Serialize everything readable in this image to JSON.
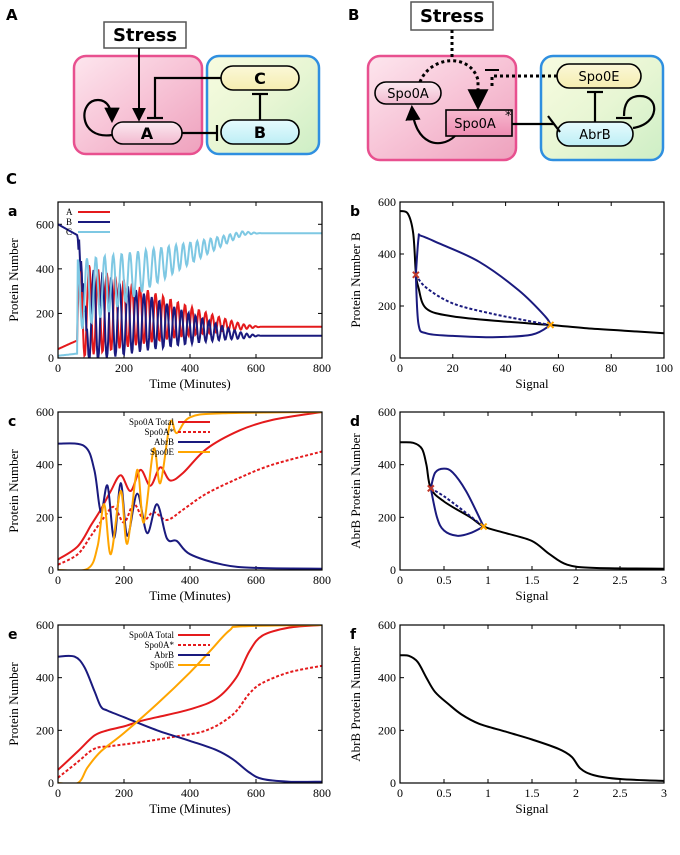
{
  "panel_labels": {
    "A": "A",
    "B": "B",
    "C": "C"
  },
  "diagram_a": {
    "stress": "Stress",
    "node_a": "A",
    "node_b": "B",
    "node_c": "C"
  },
  "diagram_b": {
    "stress": "Stress",
    "spo0a": "Spo0A",
    "spo0a_star": "Spo0A",
    "star": "*",
    "spo0e": "Spo0E",
    "abrb": "AbrB"
  },
  "colors": {
    "red": "#e41a1c",
    "navy": "#1a1a7e",
    "light_blue": "#7ec8e3",
    "orange": "#ffa500",
    "black": "#000000",
    "pink": "#f4a6c0",
    "green": "#c8ecc0"
  },
  "chart_data": [
    {
      "id": "a",
      "letter": "a",
      "type": "line",
      "xlabel": "Time (Minutes)",
      "ylabel": "Protein Number",
      "xlim": [
        0,
        800
      ],
      "ylim": [
        0,
        700
      ],
      "xticks": [
        "0",
        "200",
        "400",
        "600",
        "800"
      ],
      "yticks": [
        "0",
        "200",
        "400",
        "600"
      ],
      "legend": [
        "A",
        "B",
        "C"
      ],
      "series": [
        {
          "name": "A",
          "style": "oscillating",
          "osc_center": [
            220,
            140
          ],
          "osc_amp": [
            220,
            0
          ]
        },
        {
          "name": "B",
          "style": "oscillating",
          "osc_center": [
            200,
            100
          ],
          "osc_amp": [
            230,
            0
          ]
        },
        {
          "name": "C",
          "style": "oscillating",
          "osc_center": [
            280,
            560
          ],
          "osc_amp": [
            180,
            0
          ]
        }
      ]
    },
    {
      "id": "b",
      "letter": "b",
      "type": "line",
      "xlabel": "Signal",
      "ylabel": "Protein Number B",
      "xlim": [
        0,
        100
      ],
      "ylim": [
        0,
        600
      ],
      "xticks": [
        "0",
        "20",
        "40",
        "60",
        "80",
        "100"
      ],
      "yticks": [
        "0",
        "200",
        "400",
        "600"
      ],
      "series": [
        {
          "name": "stable_low",
          "points": [
            [
              0,
              565
            ],
            [
              3,
              555
            ],
            [
              5,
              480
            ],
            [
              6,
              330
            ],
            [
              7,
              270
            ],
            [
              10,
              190
            ],
            [
              20,
              160
            ],
            [
              40,
              140
            ],
            [
              57,
              127
            ],
            [
              70,
              115
            ],
            [
              85,
              105
            ],
            [
              100,
              95
            ]
          ]
        },
        {
          "name": "oscillation_max",
          "points": [
            [
              6,
              320
            ],
            [
              7,
              460
            ],
            [
              8,
              470
            ],
            [
              15,
              440
            ],
            [
              30,
              370
            ],
            [
              45,
              260
            ],
            [
              55,
              160
            ],
            [
              57,
              127
            ]
          ]
        },
        {
          "name": "oscillation_min",
          "points": [
            [
              6,
              320
            ],
            [
              7,
              130
            ],
            [
              10,
              95
            ],
            [
              20,
              85
            ],
            [
              35,
              80
            ],
            [
              50,
              90
            ],
            [
              57,
              127
            ]
          ]
        },
        {
          "name": "unstable",
          "dashed": true,
          "points": [
            [
              6,
              320
            ],
            [
              10,
              270
            ],
            [
              20,
              210
            ],
            [
              35,
              170
            ],
            [
              50,
              140
            ],
            [
              57,
              127
            ]
          ]
        }
      ],
      "markers": [
        {
          "x": 6,
          "y": 320,
          "color": "#c0392b"
        },
        {
          "x": 57,
          "y": 127,
          "color": "#ffa500"
        }
      ]
    },
    {
      "id": "c",
      "letter": "c",
      "type": "line",
      "xlabel": "Time (Minutes)",
      "ylabel": "Protein Number",
      "xlim": [
        0,
        800
      ],
      "ylim": [
        0,
        600
      ],
      "xticks": [
        "0",
        "200",
        "400",
        "600",
        "800"
      ],
      "yticks": [
        "0",
        "200",
        "400",
        "600"
      ],
      "legend": [
        "Spo0A Total",
        "Spo0A*",
        "AbrB",
        "Spo0E"
      ],
      "series": [
        {
          "name": "Spo0A Total",
          "points": [
            [
              0,
              40
            ],
            [
              60,
              90
            ],
            [
              100,
              170
            ],
            [
              130,
              230
            ],
            [
              160,
              300
            ],
            [
              190,
              360
            ],
            [
              220,
              300
            ],
            [
              250,
              380
            ],
            [
              280,
              320
            ],
            [
              310,
              390
            ],
            [
              340,
              340
            ],
            [
              380,
              370
            ],
            [
              450,
              460
            ],
            [
              550,
              530
            ],
            [
              650,
              570
            ],
            [
              800,
              600
            ]
          ]
        },
        {
          "name": "Spo0A*",
          "dashed": true,
          "points": [
            [
              0,
              20
            ],
            [
              60,
              60
            ],
            [
              100,
              130
            ],
            [
              140,
              200
            ],
            [
              170,
              240
            ],
            [
              200,
              180
            ],
            [
              230,
              250
            ],
            [
              260,
              190
            ],
            [
              290,
              220
            ],
            [
              330,
              190
            ],
            [
              380,
              230
            ],
            [
              450,
              290
            ],
            [
              550,
              350
            ],
            [
              650,
              400
            ],
            [
              800,
              450
            ]
          ]
        },
        {
          "name": "AbrB",
          "points": [
            [
              0,
              480
            ],
            [
              80,
              470
            ],
            [
              110,
              380
            ],
            [
              130,
              220
            ],
            [
              150,
              320
            ],
            [
              170,
              120
            ],
            [
              190,
              330
            ],
            [
              210,
              130
            ],
            [
              240,
              290
            ],
            [
              270,
              140
            ],
            [
              300,
              250
            ],
            [
              330,
              120
            ],
            [
              360,
              110
            ],
            [
              400,
              60
            ],
            [
              500,
              20
            ],
            [
              600,
              8
            ],
            [
              800,
              5
            ]
          ]
        },
        {
          "name": "Spo0E",
          "points": [
            [
              0,
              0
            ],
            [
              90,
              5
            ],
            [
              120,
              90
            ],
            [
              140,
              250
            ],
            [
              160,
              60
            ],
            [
              190,
              300
            ],
            [
              210,
              100
            ],
            [
              240,
              380
            ],
            [
              260,
              180
            ],
            [
              290,
              460
            ],
            [
              310,
              330
            ],
            [
              340,
              560
            ],
            [
              360,
              520
            ],
            [
              400,
              580
            ],
            [
              500,
              595
            ],
            [
              800,
              600
            ]
          ]
        }
      ]
    },
    {
      "id": "d",
      "letter": "d",
      "type": "line",
      "xlabel": "Signal",
      "ylabel": "AbrB Protein Number",
      "xlim": [
        0,
        3
      ],
      "ylim": [
        0,
        600
      ],
      "xticks": [
        "0",
        "0.5",
        "1",
        "1.5",
        "2",
        "2.5",
        "3"
      ],
      "yticks": [
        "0",
        "200",
        "400",
        "600"
      ],
      "series": [
        {
          "name": "stable",
          "points": [
            [
              0,
              485
            ],
            [
              0.15,
              483
            ],
            [
              0.25,
              460
            ],
            [
              0.3,
              400
            ],
            [
              0.35,
              310
            ],
            [
              0.5,
              260
            ],
            [
              0.8,
              200
            ],
            [
              0.95,
              165
            ],
            [
              1.2,
              140
            ],
            [
              1.5,
              110
            ],
            [
              1.7,
              60
            ],
            [
              1.9,
              20
            ],
            [
              2.2,
              8
            ],
            [
              3,
              5
            ]
          ]
        },
        {
          "name": "oscillation_max",
          "points": [
            [
              0.35,
              310
            ],
            [
              0.4,
              370
            ],
            [
              0.5,
              385
            ],
            [
              0.6,
              370
            ],
            [
              0.75,
              300
            ],
            [
              0.9,
              200
            ],
            [
              0.95,
              165
            ]
          ]
        },
        {
          "name": "oscillation_min",
          "points": [
            [
              0.35,
              310
            ],
            [
              0.42,
              200
            ],
            [
              0.5,
              150
            ],
            [
              0.65,
              130
            ],
            [
              0.8,
              140
            ],
            [
              0.95,
              165
            ]
          ]
        },
        {
          "name": "unstable",
          "dashed": true,
          "points": [
            [
              0.35,
              310
            ],
            [
              0.5,
              280
            ],
            [
              0.7,
              230
            ],
            [
              0.95,
              165
            ]
          ]
        }
      ],
      "markers": [
        {
          "x": 0.35,
          "y": 310,
          "color": "#c0392b"
        },
        {
          "x": 0.95,
          "y": 165,
          "color": "#ffa500"
        }
      ]
    },
    {
      "id": "e",
      "letter": "e",
      "type": "line",
      "xlabel": "Time (Minutes)",
      "ylabel": "Protein Number",
      "xlim": [
        0,
        800
      ],
      "ylim": [
        0,
        600
      ],
      "xticks": [
        "0",
        "200",
        "400",
        "600",
        "800"
      ],
      "yticks": [
        "0",
        "200",
        "400",
        "600"
      ],
      "legend": [
        "Spo0A Total",
        "Spo0A*",
        "AbrB",
        "Spo0E"
      ],
      "series": [
        {
          "name": "Spo0A Total",
          "points": [
            [
              0,
              50
            ],
            [
              60,
              120
            ],
            [
              110,
              180
            ],
            [
              150,
              200
            ],
            [
              200,
              215
            ],
            [
              250,
              235
            ],
            [
              300,
              250
            ],
            [
              400,
              280
            ],
            [
              480,
              320
            ],
            [
              540,
              400
            ],
            [
              580,
              500
            ],
            [
              620,
              560
            ],
            [
              700,
              590
            ],
            [
              800,
              600
            ]
          ]
        },
        {
          "name": "Spo0A*",
          "dashed": true,
          "points": [
            [
              0,
              20
            ],
            [
              60,
              80
            ],
            [
              110,
              130
            ],
            [
              160,
              140
            ],
            [
              250,
              155
            ],
            [
              350,
              175
            ],
            [
              450,
              200
            ],
            [
              530,
              260
            ],
            [
              580,
              340
            ],
            [
              620,
              380
            ],
            [
              700,
              420
            ],
            [
              800,
              445
            ]
          ]
        },
        {
          "name": "AbrB",
          "points": [
            [
              0,
              480
            ],
            [
              50,
              480
            ],
            [
              80,
              440
            ],
            [
              110,
              350
            ],
            [
              130,
              290
            ],
            [
              150,
              275
            ],
            [
              200,
              250
            ],
            [
              300,
              200
            ],
            [
              400,
              160
            ],
            [
              480,
              125
            ],
            [
              530,
              90
            ],
            [
              580,
              40
            ],
            [
              620,
              15
            ],
            [
              700,
              5
            ],
            [
              800,
              5
            ]
          ]
        },
        {
          "name": "Spo0E",
          "points": [
            [
              0,
              0
            ],
            [
              60,
              0
            ],
            [
              90,
              60
            ],
            [
              130,
              120
            ],
            [
              200,
              190
            ],
            [
              300,
              300
            ],
            [
              400,
              420
            ],
            [
              460,
              500
            ],
            [
              520,
              580
            ],
            [
              560,
              595
            ],
            [
              800,
              600
            ]
          ]
        }
      ]
    },
    {
      "id": "f",
      "letter": "f",
      "type": "line",
      "xlabel": "Signal",
      "ylabel": "AbrB Protein Number",
      "xlim": [
        0,
        3
      ],
      "ylim": [
        0,
        600
      ],
      "xticks": [
        "0",
        "0.5",
        "1",
        "1.5",
        "2",
        "2.5",
        "3"
      ],
      "yticks": [
        "0",
        "200",
        "400",
        "600"
      ],
      "series": [
        {
          "name": "stable",
          "points": [
            [
              0,
              485
            ],
            [
              0.1,
              483
            ],
            [
              0.2,
              460
            ],
            [
              0.3,
              400
            ],
            [
              0.4,
              345
            ],
            [
              0.55,
              300
            ],
            [
              0.7,
              260
            ],
            [
              0.9,
              225
            ],
            [
              1.2,
              195
            ],
            [
              1.5,
              165
            ],
            [
              1.8,
              130
            ],
            [
              1.95,
              100
            ],
            [
              2.05,
              55
            ],
            [
              2.2,
              30
            ],
            [
              2.5,
              15
            ],
            [
              3,
              8
            ]
          ]
        }
      ]
    }
  ]
}
